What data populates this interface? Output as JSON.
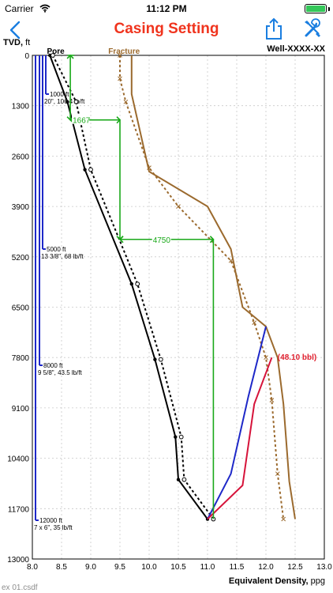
{
  "status_bar": {
    "carrier": "Carrier",
    "time": "11:12 PM"
  },
  "nav": {
    "title": "Casing Setting",
    "title_color": "#f0341e",
    "accent_color": "#1a7ee0",
    "back_icon": "chevron-left-icon",
    "share_icon": "share-icon",
    "tools_icon": "wrench-screwdriver-icon"
  },
  "axes": {
    "y_title": "TVD,",
    "y_unit": " ft",
    "x_title": "Equivalent Density,",
    "x_unit": " ppg"
  },
  "well_name": "Well-XXXX-XX",
  "file_name": "ex 01.csdf",
  "chart_data": {
    "type": "line",
    "xlabel": "Equivalent Density, ppg",
    "ylabel": "TVD, ft",
    "xlim": [
      8.0,
      13.0
    ],
    "ylim": [
      13000,
      0
    ],
    "x_ticks": [
      "8.0",
      "8.5",
      "9.0",
      "9.5",
      "10.0",
      "10.5",
      "11.0",
      "11.5",
      "12.0",
      "12.5",
      "13.0"
    ],
    "y_ticks": [
      "0",
      "1300",
      "2600",
      "3900",
      "5200",
      "6500",
      "7800",
      "9100",
      "10400",
      "11700",
      "13000"
    ],
    "grid": true,
    "series": [
      {
        "name": "Pore",
        "color": "#000000",
        "style": "solid",
        "marker": "dot",
        "points": [
          [
            8.3,
            0
          ],
          [
            8.6,
            1200
          ],
          [
            8.9,
            2950
          ],
          [
            9.7,
            5900
          ],
          [
            10.1,
            7850
          ],
          [
            10.45,
            9850
          ],
          [
            10.5,
            10950
          ],
          [
            11.0,
            11970
          ]
        ]
      },
      {
        "name": "",
        "color": "#000000",
        "style": "dotted",
        "marker": "circle",
        "points": [
          [
            8.35,
            0
          ],
          [
            8.75,
            1200
          ],
          [
            9.0,
            2950
          ],
          [
            9.8,
            5900
          ],
          [
            10.2,
            7850
          ],
          [
            10.55,
            9850
          ],
          [
            10.6,
            10950
          ],
          [
            11.1,
            11970
          ]
        ]
      },
      {
        "name": "Fracture",
        "color": "#9b6a2e",
        "style": "solid",
        "marker": "none",
        "points": [
          [
            9.7,
            0
          ],
          [
            9.7,
            1000
          ],
          [
            10.0,
            3000
          ],
          [
            11.0,
            3900
          ],
          [
            11.4,
            5000
          ],
          [
            11.6,
            6500
          ],
          [
            12.0,
            7000
          ],
          [
            12.2,
            7800
          ],
          [
            12.3,
            9000
          ],
          [
            12.4,
            11000
          ],
          [
            12.5,
            11970
          ]
        ]
      },
      {
        "name": "",
        "color": "#9b6a2e",
        "style": "dotted",
        "marker": "x",
        "points": [
          [
            9.5,
            0
          ],
          [
            9.5,
            600
          ],
          [
            9.6,
            1200
          ],
          [
            10.0,
            2900
          ],
          [
            10.5,
            3900
          ],
          [
            11.4,
            5300
          ],
          [
            11.8,
            6900
          ],
          [
            12.0,
            7800
          ],
          [
            12.1,
            8900
          ],
          [
            12.2,
            10800
          ],
          [
            12.3,
            11970
          ]
        ]
      },
      {
        "name": "",
        "color": "#1e28c8",
        "style": "solid",
        "marker": "none",
        "points": [
          [
            11.0,
            11970
          ],
          [
            11.4,
            10800
          ],
          [
            11.7,
            8800
          ],
          [
            12.0,
            7000
          ]
        ]
      },
      {
        "name": "",
        "color": "#d6133a",
        "style": "solid",
        "marker": "none",
        "points": [
          [
            11.0,
            11970
          ],
          [
            11.6,
            11100
          ],
          [
            11.8,
            9000
          ],
          [
            12.1,
            7800
          ]
        ]
      }
    ],
    "annotations": [
      {
        "text": "1667",
        "color": "#1aa91a"
      },
      {
        "text": "4750",
        "color": "#1aa91a"
      },
      {
        "text": "(48.10 bbl)",
        "color": "#e0202f"
      }
    ],
    "casings": [
      {
        "depth_label": "1000 ft",
        "size_label": "20\", 106.4 lb/ft",
        "depth": 1000
      },
      {
        "depth_label": "5000 ft",
        "size_label": "13 3/8\", 68 lb/ft",
        "depth": 5000
      },
      {
        "depth_label": "8000 ft",
        "size_label": "9 5/8\", 43.5 lb/ft",
        "depth": 8000
      },
      {
        "depth_label": "12000 ft",
        "size_label": "7 x 6\", 35 lb/ft",
        "depth": 12000
      }
    ],
    "series_labels": {
      "pore": "Pore",
      "fracture": "Fracture"
    }
  }
}
